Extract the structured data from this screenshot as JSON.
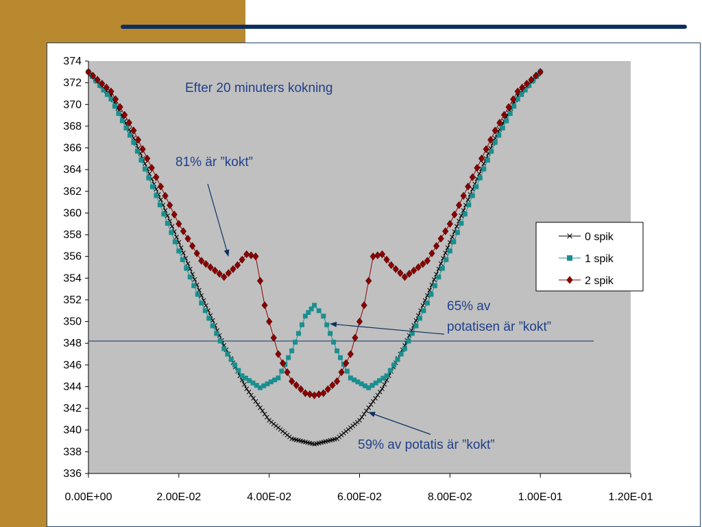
{
  "colors": {
    "accent_gold": "#b8892f",
    "navy": "#0d2f5f",
    "plot_bg": "#c0c0c0",
    "annotation_text": "#1f3f8a",
    "series_0": "#000000",
    "series_1": "#1a8f8f",
    "series_2": "#8b0000"
  },
  "chart_data": {
    "type": "line",
    "title": "",
    "xlabel": "",
    "ylabel": "",
    "xlim": [
      0,
      0.12
    ],
    "ylim": [
      336,
      374
    ],
    "x_ticks": [
      "0.00E+00",
      "2.00E-02",
      "4.00E-02",
      "6.00E-02",
      "8.00E-02",
      "1.00E-01",
      "1.20E-01"
    ],
    "y_ticks": [
      "336",
      "338",
      "340",
      "342",
      "344",
      "346",
      "348",
      "350",
      "352",
      "354",
      "356",
      "358",
      "360",
      "362",
      "364",
      "366",
      "368",
      "370",
      "372",
      "374"
    ],
    "grid": false,
    "legend_position": "right",
    "reference_line_y": 348.2,
    "series": [
      {
        "name": "0 spik",
        "marker": "x",
        "color": "#000000",
        "x": [
          0,
          0.005,
          0.01,
          0.015,
          0.02,
          0.025,
          0.03,
          0.035,
          0.04,
          0.045,
          0.05,
          0.055,
          0.06,
          0.065,
          0.07,
          0.075,
          0.08,
          0.085,
          0.09,
          0.095,
          0.1
        ],
        "y": [
          373.0,
          370.8,
          366.9,
          362.2,
          357.3,
          352.4,
          347.8,
          343.8,
          340.9,
          339.2,
          338.7,
          339.2,
          340.9,
          343.8,
          347.8,
          352.4,
          357.3,
          362.2,
          366.9,
          370.8,
          373.0
        ]
      },
      {
        "name": "1 spik",
        "marker": "square",
        "color": "#1a8f8f",
        "x": [
          0,
          0.005,
          0.01,
          0.015,
          0.02,
          0.025,
          0.03,
          0.034,
          0.038,
          0.042,
          0.045,
          0.048,
          0.05,
          0.052,
          0.055,
          0.058,
          0.062,
          0.066,
          0.07,
          0.075,
          0.08,
          0.085,
          0.09,
          0.095,
          0.1
        ],
        "y": [
          373.0,
          370.5,
          366.5,
          361.6,
          356.5,
          351.7,
          347.5,
          345.0,
          343.9,
          344.8,
          347.3,
          350.5,
          351.5,
          350.5,
          347.3,
          344.8,
          343.9,
          345.0,
          347.5,
          351.7,
          356.5,
          361.6,
          366.5,
          370.5,
          373.0
        ]
      },
      {
        "name": "2 spik",
        "marker": "diamond",
        "color": "#8b0000",
        "x": [
          0,
          0.005,
          0.01,
          0.015,
          0.02,
          0.025,
          0.03,
          0.033,
          0.035,
          0.037,
          0.039,
          0.042,
          0.045,
          0.048,
          0.05,
          0.052,
          0.055,
          0.058,
          0.061,
          0.063,
          0.065,
          0.067,
          0.07,
          0.075,
          0.08,
          0.085,
          0.09,
          0.095,
          0.1
        ],
        "y": [
          373.0,
          371.2,
          367.6,
          363.3,
          359.0,
          355.6,
          354.1,
          355.2,
          356.2,
          356.0,
          351.5,
          347.0,
          344.5,
          343.4,
          343.2,
          343.4,
          344.5,
          347.0,
          351.5,
          356.0,
          356.2,
          355.2,
          354.1,
          355.6,
          359.0,
          363.3,
          367.6,
          371.2,
          373.0
        ]
      }
    ],
    "annotations": [
      {
        "text": "Efter 20 minuters kokning"
      },
      {
        "text": "81% är ”kokt”"
      },
      {
        "text": "65% av"
      },
      {
        "text": "potatisen är ”kokt”"
      },
      {
        "text": "59% av potatis är ”kokt”"
      }
    ]
  }
}
